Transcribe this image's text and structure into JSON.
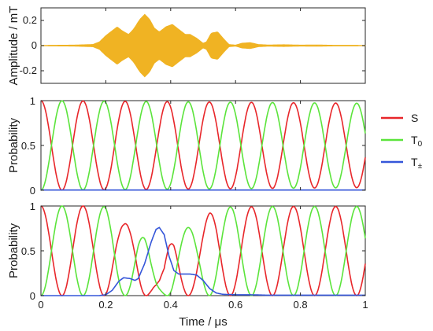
{
  "chart_data": [
    {
      "type": "area",
      "ylabel": "Amplitude / mT",
      "xlim": [
        0,
        1
      ],
      "ylim": [
        -0.3,
        0.3
      ],
      "yticks": [
        "0.2",
        "0",
        "-0.2"
      ],
      "color": "#F0B323",
      "series": [
        {
          "envelope": [
            [
              0.0,
              0.003
            ],
            [
              0.1,
              0.005
            ],
            [
              0.16,
              0.01
            ],
            [
              0.18,
              0.03
            ],
            [
              0.2,
              0.08
            ],
            [
              0.22,
              0.12
            ],
            [
              0.235,
              0.15
            ],
            [
              0.25,
              0.12
            ],
            [
              0.27,
              0.09
            ],
            [
              0.285,
              0.13
            ],
            [
              0.305,
              0.21
            ],
            [
              0.32,
              0.25
            ],
            [
              0.335,
              0.21
            ],
            [
              0.35,
              0.14
            ],
            [
              0.365,
              0.11
            ],
            [
              0.385,
              0.15
            ],
            [
              0.405,
              0.17
            ],
            [
              0.43,
              0.12
            ],
            [
              0.445,
              0.09
            ],
            [
              0.46,
              0.09
            ],
            [
              0.48,
              0.06
            ],
            [
              0.5,
              0.02
            ],
            [
              0.51,
              0.03
            ],
            [
              0.525,
              0.1
            ],
            [
              0.545,
              0.11
            ],
            [
              0.565,
              0.05
            ],
            [
              0.58,
              0.01
            ],
            [
              0.6,
              0.005
            ],
            [
              0.62,
              0.02
            ],
            [
              0.645,
              0.025
            ],
            [
              0.67,
              0.01
            ],
            [
              0.7,
              0.006
            ],
            [
              0.75,
              0.008
            ],
            [
              0.8,
              0.005
            ],
            [
              0.85,
              0.006
            ],
            [
              0.9,
              0.004
            ],
            [
              0.95,
              0.004
            ],
            [
              1.0,
              0.003
            ]
          ]
        }
      ]
    },
    {
      "type": "line",
      "ylabel": "Probability",
      "xlim": [
        0,
        1
      ],
      "ylim": [
        0,
        1
      ],
      "yticks": [
        "1",
        "0.5",
        "0"
      ],
      "series": [
        {
          "name": "S",
          "color": "#E8262A",
          "function": "cos2",
          "period": 0.1298,
          "amplitude_decay": 0.06
        },
        {
          "name": "T0",
          "color": "#5BE43B",
          "function": "sin2",
          "period": 0.1298,
          "amplitude_decay": 0.06
        },
        {
          "name": "T±",
          "color": "#3556D9",
          "function": "const",
          "value": 0.003
        }
      ]
    },
    {
      "type": "line",
      "ylabel": "Probability",
      "xlabel": "Time / μs",
      "xlim": [
        0,
        1
      ],
      "ylim": [
        0,
        1
      ],
      "xticks": [
        "0",
        "0.2",
        "0.4",
        "0.6",
        "0.8",
        "1"
      ],
      "yticks": [
        "1",
        "0.5",
        "0"
      ],
      "series": [
        {
          "name": "S",
          "color": "#E8262A",
          "function": "cos2",
          "period": 0.1298
        },
        {
          "name": "T0",
          "color": "#5BE43B",
          "function": "sin2",
          "period": 0.1298
        },
        {
          "name": "T±",
          "color": "#3556D9",
          "points": [
            [
              0.0,
              0.0
            ],
            [
              0.18,
              0.0
            ],
            [
              0.2,
              0.01
            ],
            [
              0.22,
              0.06
            ],
            [
              0.24,
              0.16
            ],
            [
              0.255,
              0.2
            ],
            [
              0.275,
              0.19
            ],
            [
              0.29,
              0.17
            ],
            [
              0.3,
              0.19
            ],
            [
              0.32,
              0.36
            ],
            [
              0.34,
              0.6
            ],
            [
              0.355,
              0.74
            ],
            [
              0.365,
              0.76
            ],
            [
              0.38,
              0.68
            ],
            [
              0.395,
              0.44
            ],
            [
              0.41,
              0.28
            ],
            [
              0.425,
              0.24
            ],
            [
              0.46,
              0.24
            ],
            [
              0.48,
              0.23
            ],
            [
              0.5,
              0.17
            ],
            [
              0.52,
              0.08
            ],
            [
              0.54,
              0.03
            ],
            [
              0.56,
              0.015
            ],
            [
              0.6,
              0.01
            ],
            [
              0.64,
              0.01
            ],
            [
              0.7,
              0.005
            ],
            [
              1.0,
              0.005
            ]
          ]
        }
      ]
    }
  ],
  "legend": {
    "items": [
      {
        "label": "S",
        "sub": "",
        "color": "#E8262A"
      },
      {
        "label": "T",
        "sub": "0",
        "color": "#5BE43B"
      },
      {
        "label": "T",
        "sub": "±",
        "color": "#3556D9"
      }
    ]
  }
}
